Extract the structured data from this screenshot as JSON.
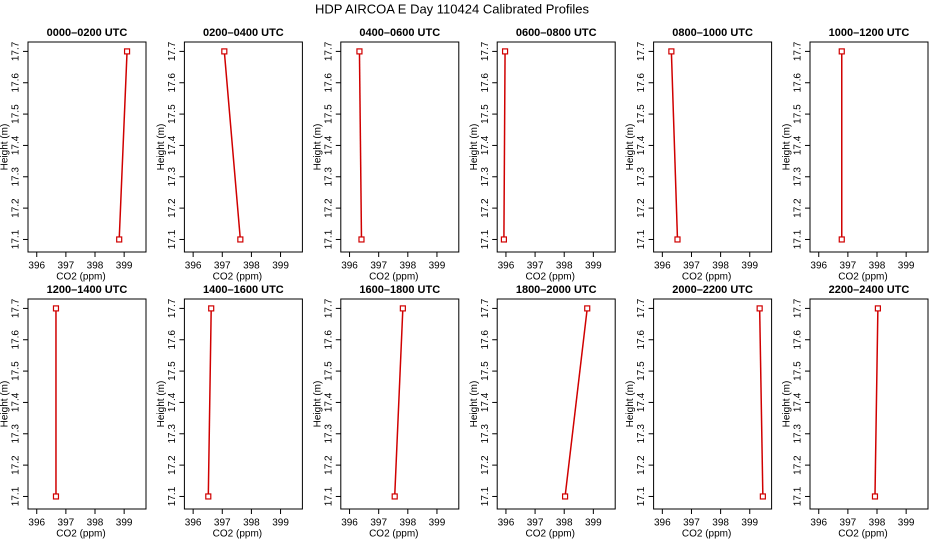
{
  "title": "HDP AIRCOA E  Day 110424  Calibrated Profiles",
  "chart_data": [
    {
      "type": "line",
      "title": "0000–0200 UTC",
      "xlabel": "CO2 (ppm)",
      "ylabel": "Height (m)",
      "x": [
        398.83,
        399.1
      ],
      "values": [
        17.1,
        17.7
      ],
      "color": "#d00000",
      "xlim": [
        395.7,
        399.75
      ],
      "ylim": [
        17.06,
        17.73
      ],
      "xticks": [
        396,
        397,
        398,
        399
      ],
      "yticks": [
        17.1,
        17.2,
        17.3,
        17.4,
        17.5,
        17.6,
        17.7
      ]
    },
    {
      "type": "line",
      "title": "0200–0400 UTC",
      "xlabel": "CO2 (ppm)",
      "ylabel": "Height (m)",
      "x": [
        397.62,
        397.07
      ],
      "values": [
        17.1,
        17.7
      ],
      "color": "#d00000",
      "xlim": [
        395.7,
        399.75
      ],
      "ylim": [
        17.06,
        17.73
      ],
      "xticks": [
        396,
        397,
        398,
        399
      ],
      "yticks": [
        17.1,
        17.2,
        17.3,
        17.4,
        17.5,
        17.6,
        17.7
      ]
    },
    {
      "type": "line",
      "title": "0400–0600 UTC",
      "xlabel": "CO2 (ppm)",
      "ylabel": "Height (m)",
      "x": [
        396.41,
        396.34
      ],
      "values": [
        17.1,
        17.7
      ],
      "color": "#d00000",
      "xlim": [
        395.7,
        399.75
      ],
      "ylim": [
        17.06,
        17.73
      ],
      "xticks": [
        396,
        397,
        398,
        399
      ],
      "yticks": [
        17.1,
        17.2,
        17.3,
        17.4,
        17.5,
        17.6,
        17.7
      ]
    },
    {
      "type": "line",
      "title": "0600–0800 UTC",
      "xlabel": "CO2 (ppm)",
      "ylabel": "Height (m)",
      "x": [
        395.93,
        395.97
      ],
      "values": [
        17.1,
        17.7
      ],
      "color": "#d00000",
      "xlim": [
        395.7,
        399.75
      ],
      "ylim": [
        17.06,
        17.73
      ],
      "xticks": [
        396,
        397,
        398,
        399
      ],
      "yticks": [
        17.1,
        17.2,
        17.3,
        17.4,
        17.5,
        17.6,
        17.7
      ]
    },
    {
      "type": "line",
      "title": "0800–1000 UTC",
      "xlabel": "CO2 (ppm)",
      "ylabel": "Height (m)",
      "x": [
        396.52,
        396.31
      ],
      "values": [
        17.1,
        17.7
      ],
      "color": "#d00000",
      "xlim": [
        395.7,
        399.75
      ],
      "ylim": [
        17.06,
        17.73
      ],
      "xticks": [
        396,
        397,
        398,
        399
      ],
      "yticks": [
        17.1,
        17.2,
        17.3,
        17.4,
        17.5,
        17.6,
        17.7
      ]
    },
    {
      "type": "line",
      "title": "1000–1200 UTC",
      "xlabel": "CO2 (ppm)",
      "ylabel": "Height (m)",
      "x": [
        396.79,
        396.79
      ],
      "values": [
        17.1,
        17.7
      ],
      "color": "#d00000",
      "xlim": [
        395.7,
        399.75
      ],
      "ylim": [
        17.06,
        17.73
      ],
      "xticks": [
        396,
        397,
        398,
        399
      ],
      "yticks": [
        17.1,
        17.2,
        17.3,
        17.4,
        17.5,
        17.6,
        17.7
      ]
    },
    {
      "type": "line",
      "title": "1200–1400 UTC",
      "xlabel": "CO2 (ppm)",
      "ylabel": "Height (m)",
      "x": [
        396.66,
        396.66
      ],
      "values": [
        17.1,
        17.7
      ],
      "color": "#d00000",
      "xlim": [
        395.7,
        399.75
      ],
      "ylim": [
        17.06,
        17.73
      ],
      "xticks": [
        396,
        397,
        398,
        399
      ],
      "yticks": [
        17.1,
        17.2,
        17.3,
        17.4,
        17.5,
        17.6,
        17.7
      ]
    },
    {
      "type": "line",
      "title": "1400–1600 UTC",
      "xlabel": "CO2 (ppm)",
      "ylabel": "Height (m)",
      "x": [
        396.52,
        396.62
      ],
      "values": [
        17.1,
        17.7
      ],
      "color": "#d00000",
      "xlim": [
        395.7,
        399.75
      ],
      "ylim": [
        17.06,
        17.73
      ],
      "xticks": [
        396,
        397,
        398,
        399
      ],
      "yticks": [
        17.1,
        17.2,
        17.3,
        17.4,
        17.5,
        17.6,
        17.7
      ]
    },
    {
      "type": "line",
      "title": "1600–1800 UTC",
      "xlabel": "CO2 (ppm)",
      "ylabel": "Height (m)",
      "x": [
        397.55,
        397.83
      ],
      "values": [
        17.1,
        17.7
      ],
      "color": "#d00000",
      "xlim": [
        395.7,
        399.75
      ],
      "ylim": [
        17.06,
        17.73
      ],
      "xticks": [
        396,
        397,
        398,
        399
      ],
      "yticks": [
        17.1,
        17.2,
        17.3,
        17.4,
        17.5,
        17.6,
        17.7
      ]
    },
    {
      "type": "line",
      "title": "1800–2000 UTC",
      "xlabel": "CO2 (ppm)",
      "ylabel": "Height (m)",
      "x": [
        398.03,
        398.79
      ],
      "values": [
        17.1,
        17.7
      ],
      "color": "#d00000",
      "xlim": [
        395.7,
        399.75
      ],
      "ylim": [
        17.06,
        17.73
      ],
      "xticks": [
        396,
        397,
        398,
        399
      ],
      "yticks": [
        17.1,
        17.2,
        17.3,
        17.4,
        17.5,
        17.6,
        17.7
      ]
    },
    {
      "type": "line",
      "title": "2000–2200 UTC",
      "xlabel": "CO2 (ppm)",
      "ylabel": "Height (m)",
      "x": [
        399.45,
        399.34
      ],
      "values": [
        17.1,
        17.7
      ],
      "color": "#d00000",
      "xlim": [
        395.7,
        399.75
      ],
      "ylim": [
        17.06,
        17.73
      ],
      "xticks": [
        396,
        397,
        398,
        399
      ],
      "yticks": [
        17.1,
        17.2,
        17.3,
        17.4,
        17.5,
        17.6,
        17.7
      ]
    },
    {
      "type": "line",
      "title": "2200–2400 UTC",
      "xlabel": "CO2 (ppm)",
      "ylabel": "Height (m)",
      "x": [
        397.93,
        398.03
      ],
      "values": [
        17.1,
        17.7
      ],
      "color": "#d00000",
      "xlim": [
        395.7,
        399.75
      ],
      "ylim": [
        17.06,
        17.73
      ],
      "xticks": [
        396,
        397,
        398,
        399
      ],
      "yticks": [
        17.1,
        17.2,
        17.3,
        17.4,
        17.5,
        17.6,
        17.7
      ]
    }
  ]
}
